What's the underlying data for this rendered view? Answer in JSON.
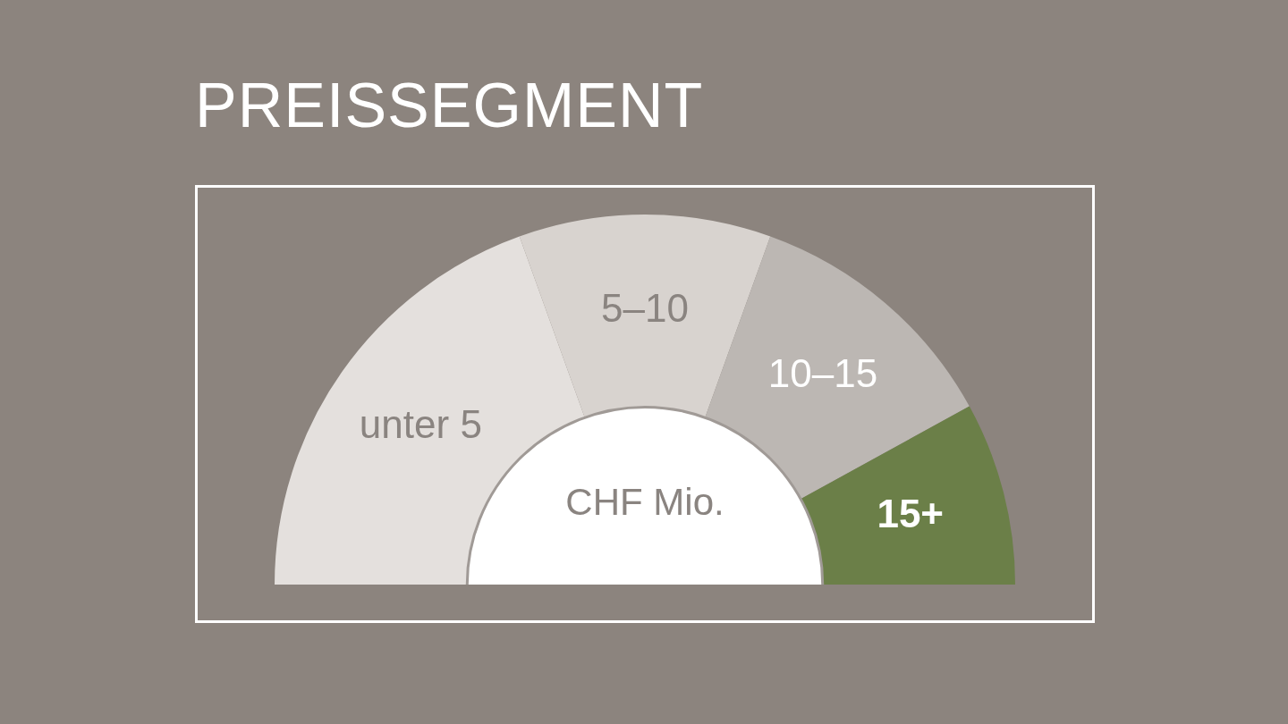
{
  "chart_data": {
    "type": "donut",
    "title": "PREISSEGMENT",
    "categories": [
      "unter 5",
      "5–10",
      "10–15",
      "15+"
    ],
    "values": [
      39,
      22,
      23,
      16
    ],
    "colors": [
      "#e4e0dd",
      "#d8d3cf",
      "#bcb7b3",
      "#6b7f48"
    ],
    "annotations": [
      "CHF Mio."
    ],
    "legend": false
  }
}
